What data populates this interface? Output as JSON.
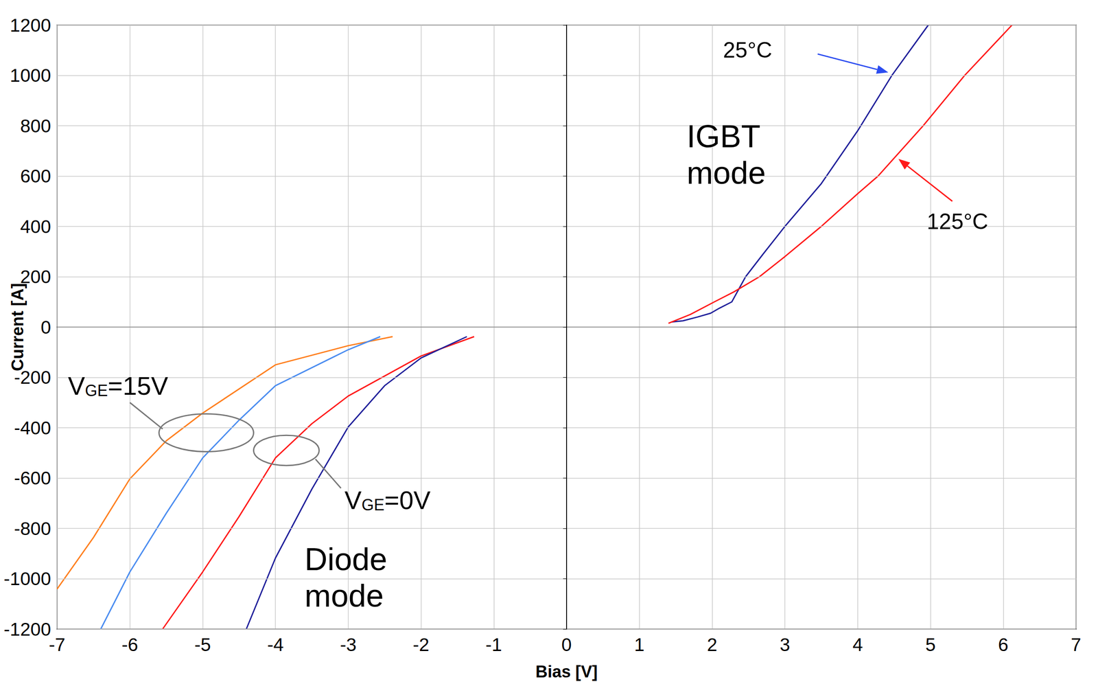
{
  "chart_data": {
    "type": "line",
    "xlabel": "Bias [V]",
    "ylabel": "Current [A]",
    "xlim": [
      -7,
      7
    ],
    "xticks": [
      -7,
      -6,
      -5,
      -4,
      -3,
      -2,
      -1,
      0,
      1,
      2,
      3,
      4,
      5,
      6,
      7
    ],
    "ylim": [
      -1200,
      1200
    ],
    "yticks": [
      -1200,
      -1000,
      -800,
      -600,
      -400,
      -200,
      0,
      200,
      400,
      600,
      800,
      1000,
      1200
    ],
    "grid": true,
    "series": [
      {
        "name": "25°C",
        "color": "#1f1f9a",
        "x": [
          1.44,
          1.6,
          1.8,
          1.98,
          2.1,
          2.27,
          2.46,
          2.7,
          3.0,
          3.5,
          4.0,
          4.47,
          4.97
        ],
        "values": [
          20,
          25,
          40,
          55,
          75,
          100,
          200,
          290,
          400,
          570,
          780,
          1000,
          1200
        ]
      },
      {
        "name": "125°C",
        "color": "#ff1a1a",
        "x": [
          1.4,
          1.7,
          2.03,
          2.3,
          2.65,
          3.0,
          3.5,
          4.0,
          4.28,
          4.9,
          5.47,
          6.12
        ],
        "values": [
          15,
          50,
          100,
          140,
          200,
          280,
          400,
          530,
          600,
          800,
          1000,
          1200
        ]
      },
      {
        "name": "VGE=15V",
        "color": "#ff7f1e",
        "x": [
          -2.39,
          -3.0,
          -4.0,
          -5.0,
          -5.5,
          -6.0,
          -6.5,
          -7.0
        ],
        "values": [
          -38,
          -74,
          -150,
          -342,
          -452,
          -603,
          -836,
          -1041
        ]
      },
      {
        "name": "VGE=15V",
        "color": "#4a8cf0",
        "x": [
          -2.56,
          -3.0,
          -4.0,
          -4.5,
          -5.0,
          -5.5,
          -6.0,
          -6.4
        ],
        "values": [
          -38,
          -90,
          -233,
          -370,
          -520,
          -740,
          -973,
          -1200
        ]
      },
      {
        "name": "VGE=0V",
        "color": "#ff1a1a",
        "x": [
          -1.27,
          -2.0,
          -3.0,
          -3.5,
          -4.0,
          -4.5,
          -5.0,
          -5.55
        ],
        "values": [
          -38,
          -115,
          -274,
          -384,
          -520,
          -753,
          -973,
          -1200
        ]
      },
      {
        "name": "VGE=0V",
        "color": "#1f1f9a",
        "x": [
          -1.37,
          -2.0,
          -2.5,
          -3.0,
          -3.5,
          -4.0,
          -4.4
        ],
        "values": [
          -38,
          -123,
          -233,
          -397,
          -644,
          -918,
          -1200
        ]
      }
    ],
    "annotations": [
      "25°C",
      "125°C",
      "IGBT mode",
      "Diode mode",
      "VGE=15V",
      "VGE=0V"
    ]
  }
}
